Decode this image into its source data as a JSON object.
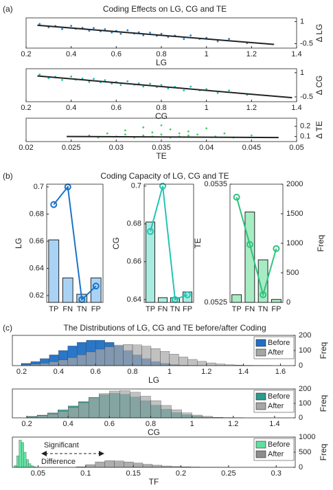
{
  "sections": [
    {
      "label": "(a)",
      "title": "Coding Effects on LG, CG and TE"
    },
    {
      "label": "(b)",
      "title": "Coding Capacity of LG, CG and TE"
    },
    {
      "label": "(c)",
      "title": "The Distributions of LG, CG and TE before/after Coding"
    }
  ],
  "chart_data": [
    {
      "type": "scatter",
      "x_label": "LG",
      "y_label": "Δ LG",
      "xlim": [
        0.2,
        1.4
      ],
      "xticks": [
        0.2,
        0.4,
        0.6,
        0.8,
        1,
        1.2,
        1.4
      ],
      "ylim": [
        -0.8,
        1.25
      ],
      "yticks": [
        -0.5,
        1
      ],
      "series": [
        {
          "color": "#1f7fd6",
          "x": [
            0.26,
            0.3,
            0.33,
            0.36,
            0.4,
            0.42,
            0.45,
            0.48,
            0.5,
            0.53,
            0.55,
            0.58,
            0.6,
            0.62,
            0.65,
            0.68,
            0.7,
            0.72,
            0.75,
            0.78,
            0.8,
            0.83,
            0.86,
            0.9,
            0.93,
            0.97,
            1.0,
            1.05,
            1.1,
            1.18
          ],
          "values": [
            0.84,
            0.61,
            0.7,
            0.49,
            0.71,
            0.51,
            0.58,
            0.37,
            0.56,
            0.34,
            0.48,
            0.26,
            0.37,
            0.17,
            0.41,
            0.19,
            0.27,
            0.07,
            0.25,
            0.03,
            0.17,
            -0.05,
            0.05,
            -0.18,
            0.06,
            -0.17,
            -0.1,
            -0.34,
            -0.18,
            -0.46
          ]
        }
      ],
      "fit": {
        "color": "#222222",
        "x": [
          0.25,
          1.3
        ],
        "values": [
          0.75,
          -0.55
        ]
      }
    },
    {
      "type": "scatter",
      "x_label": "CG",
      "y_label": "Δ CG",
      "xlim": [
        0.2,
        1.4
      ],
      "xticks": [
        0.2,
        0.4,
        0.6,
        0.8,
        1,
        1.2,
        1.4
      ],
      "ylim": [
        -0.8,
        1.25
      ],
      "yticks": [
        -0.5,
        1
      ],
      "series": [
        {
          "color": "#20c0b0",
          "x": [
            0.26,
            0.3,
            0.33,
            0.36,
            0.4,
            0.42,
            0.45,
            0.48,
            0.5,
            0.53,
            0.55,
            0.58,
            0.6,
            0.62,
            0.65,
            0.68,
            0.7,
            0.72,
            0.75,
            0.78,
            0.8,
            0.83,
            0.86,
            0.9,
            0.93,
            0.97,
            1.0,
            1.05,
            1.1,
            1.18
          ],
          "values": [
            0.89,
            0.66,
            0.75,
            0.55,
            0.77,
            0.57,
            0.64,
            0.43,
            0.62,
            0.41,
            0.54,
            0.33,
            0.43,
            0.24,
            0.47,
            0.26,
            0.34,
            0.14,
            0.32,
            0.11,
            0.24,
            0.03,
            0.12,
            -0.1,
            0.14,
            -0.09,
            -0.02,
            -0.26,
            -0.1,
            -0.37
          ]
        }
      ],
      "fit": {
        "color": "#222222",
        "x": [
          0.25,
          1.38
        ],
        "values": [
          0.8,
          -0.55
        ]
      }
    },
    {
      "type": "scatter",
      "x_label": "TE",
      "y_label": "Δ TE",
      "xlim": [
        0.02,
        0.05
      ],
      "xticks": [
        0.02,
        0.025,
        0.03,
        0.035,
        0.04,
        0.045,
        0.05
      ],
      "ylim": [
        0.05,
        0.28
      ],
      "yticks": [
        0.1,
        0.2
      ],
      "series": [
        {
          "color": "#40d060",
          "x": [
            0.027,
            0.028,
            0.029,
            0.03,
            0.031,
            0.031,
            0.032,
            0.033,
            0.033,
            0.034,
            0.034,
            0.035,
            0.035,
            0.036,
            0.036,
            0.037,
            0.037,
            0.038,
            0.038,
            0.039,
            0.04,
            0.041,
            0.042,
            0.043,
            0.045
          ],
          "values": [
            0.11,
            0.09,
            0.13,
            0.1,
            0.16,
            0.12,
            0.09,
            0.19,
            0.11,
            0.14,
            0.1,
            0.21,
            0.12,
            0.09,
            0.17,
            0.13,
            0.1,
            0.15,
            0.11,
            0.12,
            0.18,
            0.1,
            0.13,
            0.09,
            0.11
          ]
        }
      ],
      "fit": {
        "color": "#222222",
        "x": [
          0.0245,
          0.048
        ],
        "values": [
          0.1,
          0.09
        ]
      }
    },
    {
      "type": "bar",
      "y_label": "LG",
      "categories": [
        "TP",
        "FN",
        "TN",
        "FP"
      ],
      "ylim": [
        0.615,
        0.702
      ],
      "yticks": [
        0.62,
        0.64,
        0.66,
        0.68,
        0.7
      ],
      "series": [
        {
          "type": "bar",
          "color": "#a9d3f5",
          "values": [
            0.661,
            0.633,
            0.621,
            0.633
          ]
        },
        {
          "type": "line",
          "color": "#1a73c8",
          "values": [
            0.687,
            0.7,
            0.617,
            0.627
          ]
        }
      ]
    },
    {
      "type": "bar",
      "y_label": "CG",
      "categories": [
        "TP",
        "FN",
        "TN",
        "FP"
      ],
      "ylim": [
        0.6385,
        0.701
      ],
      "yticks": [
        0.64,
        0.66,
        0.68,
        0.7
      ],
      "series": [
        {
          "type": "bar",
          "color": "#a8ece0",
          "values": [
            0.681,
            0.641,
            0.641,
            0.644
          ]
        },
        {
          "type": "line",
          "color": "#22c4b0",
          "values": [
            0.676,
            0.7,
            0.64,
            0.6425
          ]
        }
      ]
    },
    {
      "type": "bar",
      "y_label": "TE",
      "y2_label": "Freq",
      "categories": [
        "TP",
        "FN",
        "TN",
        "FP"
      ],
      "ylim": [
        0.0525,
        0.0535
      ],
      "yticks": [
        0.0525,
        0.0535
      ],
      "y2lim": [
        0,
        2000
      ],
      "y2ticks": [
        0,
        500,
        1000,
        1500,
        2000
      ],
      "series": [
        {
          "type": "bar",
          "axis": "y2",
          "color": "#a8ecc4",
          "values": [
            130,
            1530,
            720,
            50
          ]
        },
        {
          "type": "line",
          "axis": "y2",
          "color": "#2ec27e",
          "values": [
            1780,
            980,
            130,
            910
          ]
        }
      ]
    },
    {
      "type": "histogram",
      "x_label": "LG",
      "y2_label": "Freq",
      "xlim": [
        0.15,
        1.68
      ],
      "xticks": [
        0.2,
        0.4,
        0.6,
        0.8,
        1,
        1.2,
        1.4,
        1.6
      ],
      "y2lim": [
        0,
        200
      ],
      "y2ticks": [
        0,
        100,
        200
      ],
      "legend": "upper right",
      "bins": [
        0.2,
        0.25,
        0.3,
        0.35,
        0.4,
        0.45,
        0.5,
        0.55,
        0.6,
        0.65,
        0.7,
        0.75,
        0.8,
        0.85,
        0.9,
        0.95,
        1,
        1.05,
        1.1,
        1.15,
        1.2,
        1.25,
        1.3,
        1.35,
        1.4,
        1.45,
        1.5,
        1.55,
        1.6
      ],
      "series": [
        {
          "name": "Before",
          "color": "#1f6fc4",
          "values": [
            15,
            27,
            46,
            71,
            100,
            130,
            154,
            168,
            168,
            154,
            130,
            100,
            71,
            46,
            27,
            15,
            7,
            3,
            1,
            0,
            0,
            0,
            0,
            0,
            0,
            0,
            0,
            0
          ]
        },
        {
          "name": "After",
          "color": "#a6a6a6",
          "values": [
            6,
            10,
            16,
            26,
            38,
            53,
            72,
            91,
            109,
            125,
            136,
            140,
            137,
            128,
            113,
            94,
            76,
            57,
            41,
            28,
            18,
            11,
            6,
            4,
            2,
            1,
            1,
            0
          ]
        }
      ]
    },
    {
      "type": "histogram",
      "x_label": "CG",
      "y2_label": "Freq",
      "xlim": [
        0.13,
        1.5
      ],
      "xticks": [
        0.2,
        0.4,
        0.6,
        0.8,
        1,
        1.2,
        1.4
      ],
      "y2lim": [
        0,
        200
      ],
      "y2ticks": [
        0,
        100,
        200
      ],
      "legend": "upper right",
      "bins": [
        0.2,
        0.25,
        0.3,
        0.35,
        0.4,
        0.45,
        0.5,
        0.55,
        0.6,
        0.65,
        0.7,
        0.75,
        0.8,
        0.85,
        0.9,
        0.95,
        1,
        1.05,
        1.1,
        1.15,
        1.2,
        1.25,
        1.3
      ],
      "series": [
        {
          "name": "Before",
          "color": "#2a9d8f",
          "values": [
            10,
            19,
            34,
            55,
            82,
            112,
            141,
            161,
            170,
            164,
            145,
            119,
            88,
            60,
            37,
            22,
            12,
            5,
            2,
            1,
            0,
            0
          ]
        },
        {
          "name": "After",
          "color": "#a6a6a6",
          "values": [
            7,
            15,
            27,
            47,
            73,
            105,
            139,
            168,
            186,
            189,
            177,
            150,
            119,
            86,
            56,
            34,
            19,
            10,
            4,
            2,
            1,
            0
          ]
        }
      ]
    },
    {
      "type": "histogram",
      "x_label": "TF",
      "y2_label": "Freq",
      "xlim": [
        0.023,
        0.32
      ],
      "xticks": [
        0.05,
        0.1,
        0.15,
        0.2,
        0.25,
        0.3
      ],
      "y2lim": [
        0,
        1000
      ],
      "y2ticks": [
        0,
        500,
        1000
      ],
      "legend": "upper right",
      "annotation": [
        "Significant",
        "Difference"
      ],
      "series": [
        {
          "name": "Before",
          "color": "#5fe0a0",
          "bins": [
            0.025,
            0.0275,
            0.03,
            0.0325,
            0.035,
            0.0375,
            0.04,
            0.0425,
            0.045,
            0.0475,
            0.05
          ],
          "values": [
            60,
            380,
            900,
            820,
            500,
            260,
            120,
            50,
            20,
            5
          ]
        },
        {
          "name": "After",
          "color": "#8c8c8c",
          "bins": [
            0.09,
            0.1,
            0.11,
            0.12,
            0.13,
            0.14,
            0.15,
            0.16,
            0.17,
            0.18,
            0.19,
            0.2,
            0.21,
            0.22,
            0.23,
            0.24,
            0.25
          ],
          "values": [
            20,
            90,
            180,
            220,
            210,
            180,
            140,
            100,
            70,
            45,
            30,
            20,
            12,
            8,
            5,
            3
          ]
        }
      ]
    }
  ]
}
